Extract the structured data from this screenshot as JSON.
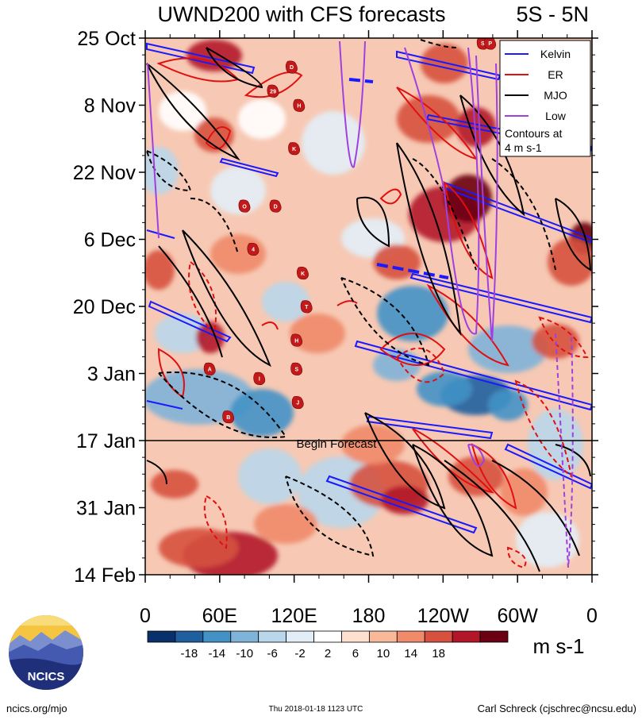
{
  "chart_data": {
    "type": "heatmap",
    "title": "UWND200 with CFS forecasts",
    "region_label": "5S - 5N",
    "y_ticks": [
      "25 Oct",
      "8 Nov",
      "22 Nov",
      "6 Dec",
      "20 Dec",
      "3 Jan",
      "17 Jan",
      "31 Jan",
      "14 Feb"
    ],
    "x_ticks": [
      "0",
      "60E",
      "120E",
      "180",
      "120W",
      "60W",
      "0"
    ],
    "x_tick_lon": [
      0,
      60,
      120,
      180,
      240,
      300,
      360
    ],
    "forecast_label": "Begin Forecast",
    "forecast_start": "17 Jan",
    "legend": {
      "placement": "top-right",
      "entries": [
        {
          "name": "Kelvin",
          "color": "#1a1aff",
          "style": "solid"
        },
        {
          "name": "ER",
          "color": "#e01010",
          "style": "solid"
        },
        {
          "name": "MJO",
          "color": "#000000",
          "style": "solid"
        },
        {
          "name": "Low",
          "color": "#a040e0",
          "style": "solid"
        }
      ],
      "note_line1": "Contours at",
      "note_line2": "4 m s-1"
    },
    "colorbar": {
      "tick_labels": [
        "-18",
        "-14",
        "-10",
        "-6",
        "-2",
        "2",
        "6",
        "10",
        "14",
        "18"
      ],
      "colors": [
        "#08306b",
        "#1f5f9e",
        "#4292c6",
        "#7fb3d8",
        "#b9d6ea",
        "#e2eef7",
        "#ffffff",
        "#fde0d0",
        "#f8b99b",
        "#ef8a6a",
        "#d6513f",
        "#b31529",
        "#6b0013"
      ],
      "units": "m s-1"
    },
    "storm_labels": [
      {
        "text": "D",
        "lon": 118,
        "date": "31 Oct"
      },
      {
        "text": "29",
        "lon": 103,
        "date": "5 Nov"
      },
      {
        "text": "H",
        "lon": 124,
        "date": "8 Nov"
      },
      {
        "text": "K",
        "lon": 120,
        "date": "17 Nov"
      },
      {
        "text": "O",
        "lon": 80,
        "date": "29 Nov"
      },
      {
        "text": "D",
        "lon": 105,
        "date": "29 Nov"
      },
      {
        "text": "4",
        "lon": 87,
        "date": "8 Dec"
      },
      {
        "text": "K",
        "lon": 127,
        "date": "13 Dec"
      },
      {
        "text": "T",
        "lon": 130,
        "date": "20 Dec"
      },
      {
        "text": "H",
        "lon": 122,
        "date": "27 Dec"
      },
      {
        "text": "S",
        "lon": 122,
        "date": "2 Jan"
      },
      {
        "text": "A",
        "lon": 52,
        "date": "2 Jan"
      },
      {
        "text": "I",
        "lon": 92,
        "date": "4 Jan"
      },
      {
        "text": "J",
        "lon": 123,
        "date": "9 Jan"
      },
      {
        "text": "B",
        "lon": 67,
        "date": "12 Jan"
      },
      {
        "text": "S",
        "lon": 272,
        "date": "26 Oct"
      },
      {
        "text": "P",
        "lon": 278,
        "date": "26 Oct"
      }
    ]
  },
  "logo": {
    "text": "NCICS"
  },
  "footer": {
    "left": "ncics.org/mjo",
    "center": "Thu 2018-01-18 1123 UTC",
    "right": "Carl Schreck (cjschrec@ncsu.edu)"
  }
}
